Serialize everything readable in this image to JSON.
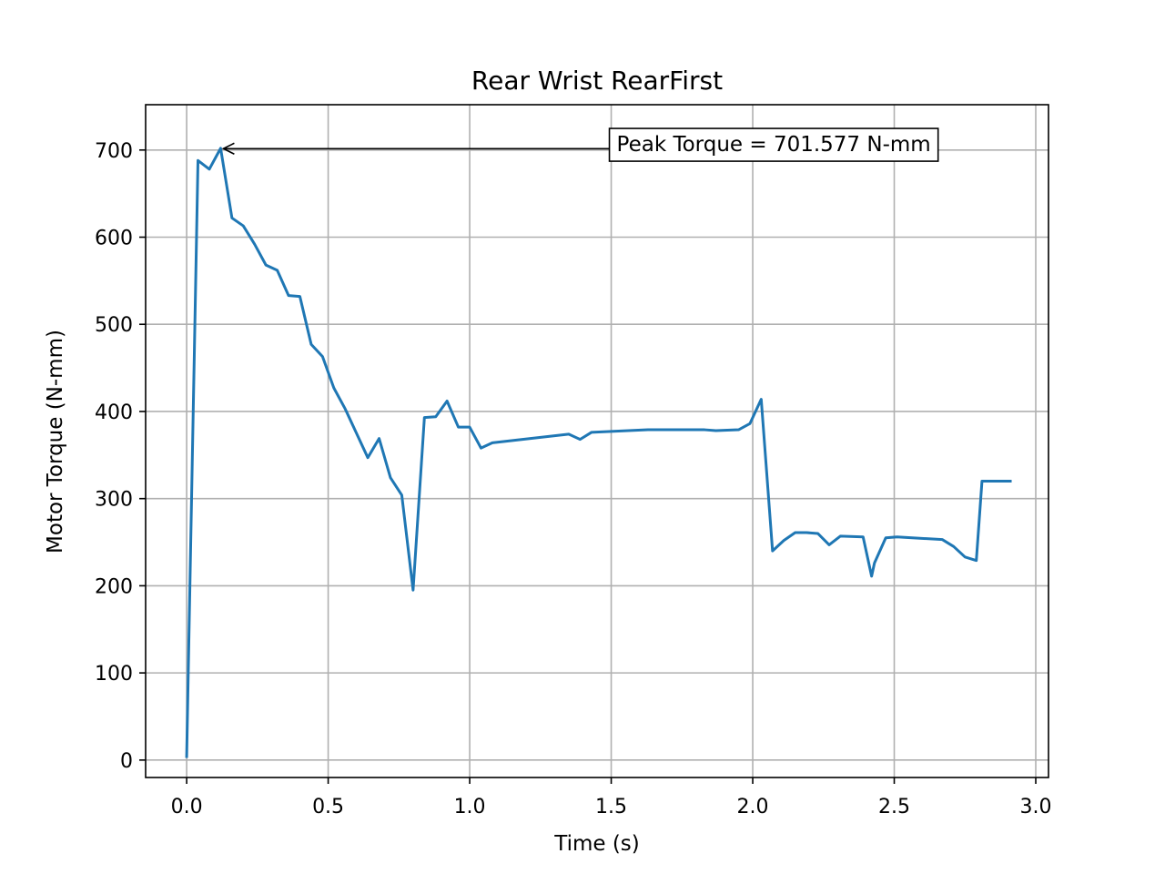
{
  "chart_data": {
    "type": "line",
    "title": "Rear Wrist RearFirst",
    "xlabel": "Time (s)",
    "ylabel": "Motor Torque (N-mm)",
    "xlim": [
      -0.145,
      3.045
    ],
    "ylim": [
      -20,
      752
    ],
    "xticks": [
      0.0,
      0.5,
      1.0,
      1.5,
      2.0,
      2.5,
      3.0
    ],
    "xtick_labels": [
      "0.0",
      "0.5",
      "1.0",
      "1.5",
      "2.0",
      "2.5",
      "3.0"
    ],
    "yticks": [
      0,
      100,
      200,
      300,
      400,
      500,
      600,
      700
    ],
    "ytick_labels": [
      "0",
      "100",
      "200",
      "300",
      "400",
      "500",
      "600",
      "700"
    ],
    "grid": true,
    "line_color": "#1f77b4",
    "series": [
      {
        "x": [
          0.0,
          0.04,
          0.08,
          0.12,
          0.16,
          0.2,
          0.24,
          0.28,
          0.32,
          0.36,
          0.4,
          0.44,
          0.48,
          0.52,
          0.56,
          0.6,
          0.64,
          0.68,
          0.72,
          0.76,
          0.8,
          0.84,
          0.88,
          0.92,
          0.96,
          1.0,
          1.04,
          1.08,
          1.35,
          1.39,
          1.43,
          1.63,
          1.83,
          1.87,
          1.95,
          1.99,
          2.03,
          2.07,
          2.11,
          2.15,
          2.19,
          2.23,
          2.27,
          2.31,
          2.39,
          2.42,
          2.43,
          2.47,
          2.51,
          2.67,
          2.71,
          2.75,
          2.79,
          2.81,
          2.91
        ],
        "y": [
          4,
          688,
          678,
          702,
          622,
          613,
          592,
          568,
          562,
          533,
          532,
          477,
          463,
          427,
          403,
          375,
          347,
          369,
          324,
          304,
          195,
          393,
          394,
          412,
          382,
          382,
          358,
          364,
          374,
          368,
          376,
          379,
          379,
          378,
          379,
          386,
          414,
          240,
          252,
          261,
          261,
          260,
          247,
          257,
          256,
          211,
          226,
          255,
          256,
          253,
          245,
          233,
          229,
          320,
          320
        ]
      }
    ],
    "annotation": {
      "text": "Peak Torque = 701.577 N-mm",
      "point": [
        0.12,
        701.577
      ],
      "text_anchor": [
        1.5,
        707
      ]
    }
  }
}
